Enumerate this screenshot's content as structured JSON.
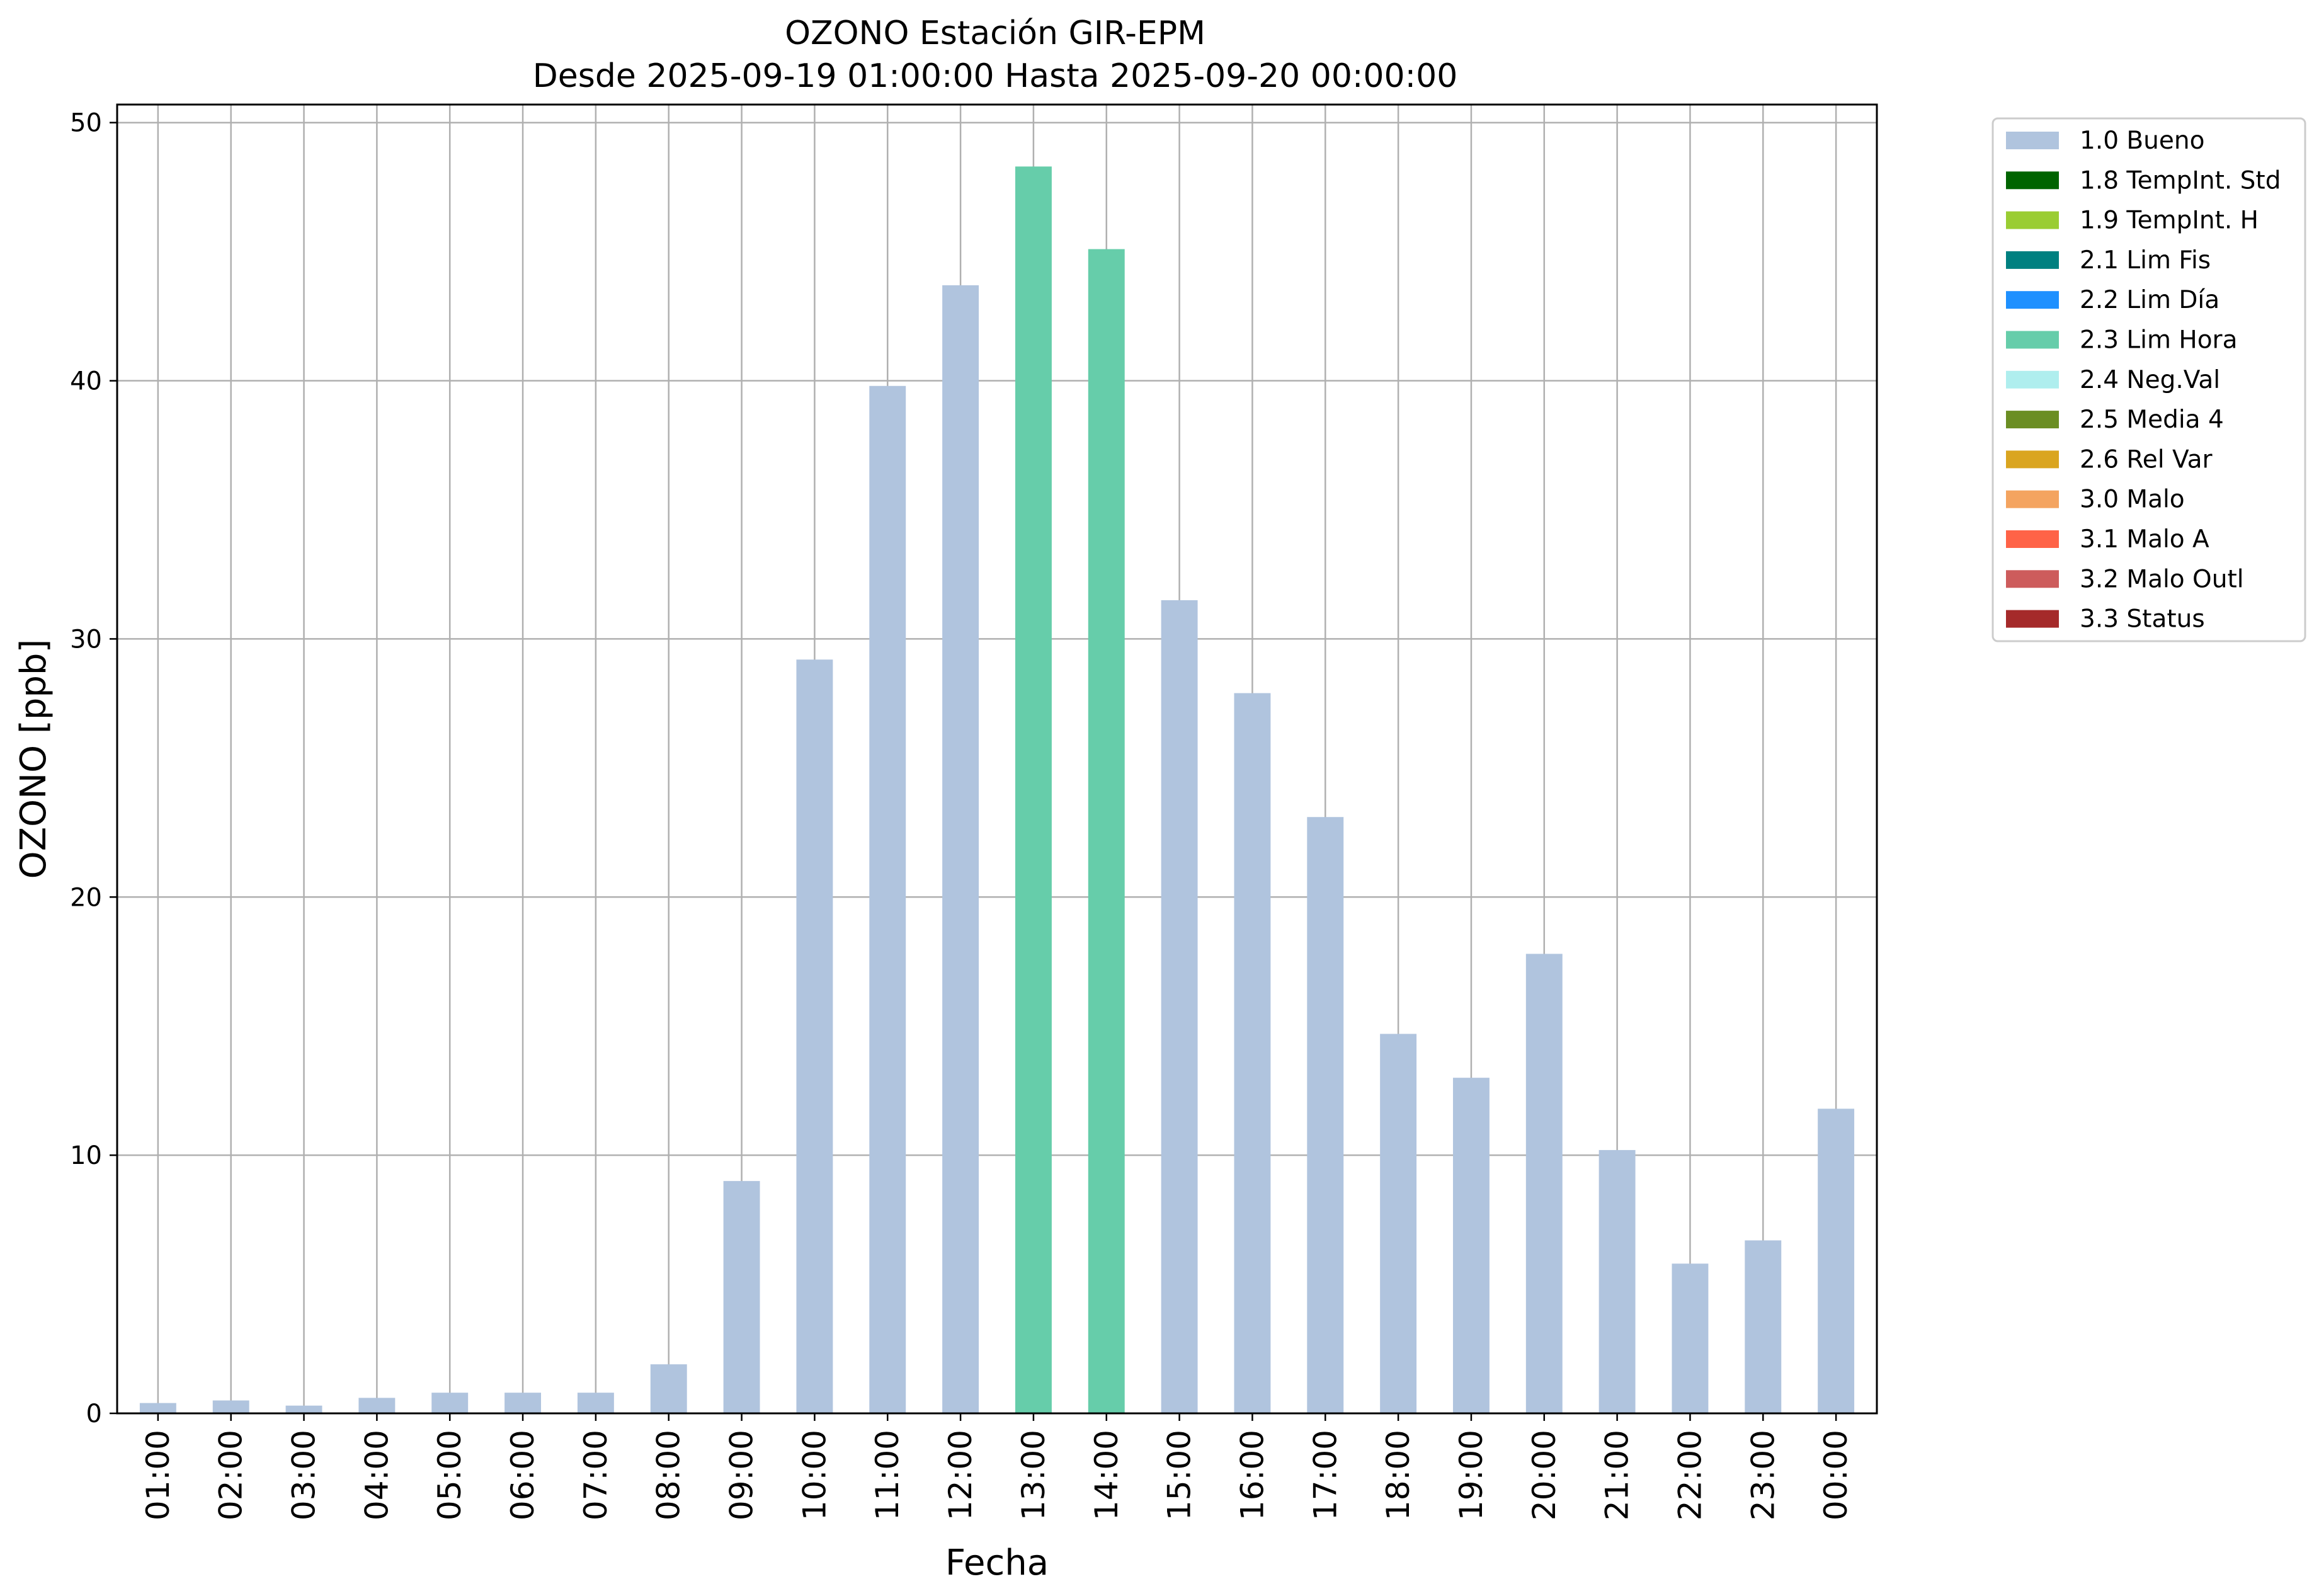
{
  "chart_data": {
    "type": "bar",
    "title": "OZONO Estación GIR-EPM",
    "subtitle": "Desde 2025-09-19 01:00:00 Hasta 2025-09-20 00:00:00",
    "xlabel": "Fecha",
    "ylabel": "OZONO [ppb]",
    "ylim": [
      0,
      50.7
    ],
    "yticks": [
      "0",
      "10",
      "20",
      "30",
      "40",
      "50"
    ],
    "grid": true,
    "legend_position": "outside-top-right",
    "categories": [
      "01:00",
      "02:00",
      "03:00",
      "04:00",
      "05:00",
      "06:00",
      "07:00",
      "08:00",
      "09:00",
      "10:00",
      "11:00",
      "12:00",
      "13:00",
      "14:00",
      "15:00",
      "16:00",
      "17:00",
      "18:00",
      "19:00",
      "20:00",
      "21:00",
      "22:00",
      "23:00",
      "00:00"
    ],
    "values": [
      0.4,
      0.5,
      0.3,
      0.6,
      0.8,
      0.8,
      0.8,
      1.9,
      9.0,
      29.2,
      39.8,
      43.7,
      48.3,
      45.1,
      31.5,
      27.9,
      23.1,
      14.7,
      13.0,
      17.8,
      10.2,
      5.8,
      6.7,
      11.8
    ],
    "flags": [
      "1.0 Bueno",
      "1.0 Bueno",
      "1.0 Bueno",
      "1.0 Bueno",
      "1.0 Bueno",
      "1.0 Bueno",
      "1.0 Bueno",
      "1.0 Bueno",
      "1.0 Bueno",
      "1.0 Bueno",
      "1.0 Bueno",
      "1.0 Bueno",
      "2.3 Lim Hora",
      "2.3 Lim Hora",
      "1.0 Bueno",
      "1.0 Bueno",
      "1.0 Bueno",
      "1.0 Bueno",
      "1.0 Bueno",
      "1.0 Bueno",
      "1.0 Bueno",
      "1.0 Bueno",
      "1.0 Bueno",
      "1.0 Bueno"
    ],
    "legend": [
      {
        "label": "1.0 Bueno",
        "color": "#b0c4de"
      },
      {
        "label": "1.8 TempInt. Std",
        "color": "#006400"
      },
      {
        "label": "1.9 TempInt. H",
        "color": "#9acd32"
      },
      {
        "label": "2.1 Lim Fis",
        "color": "#008080"
      },
      {
        "label": "2.2 Lim Día",
        "color": "#1e90ff"
      },
      {
        "label": "2.3 Lim Hora",
        "color": "#66cdaa"
      },
      {
        "label": "2.4 Neg.Val",
        "color": "#afeeee"
      },
      {
        "label": "2.5 Media 4",
        "color": "#6b8e23"
      },
      {
        "label": "2.6 Rel Var",
        "color": "#daa520"
      },
      {
        "label": "3.0 Malo",
        "color": "#f4a460"
      },
      {
        "label": "3.1 Malo A",
        "color": "#ff6347"
      },
      {
        "label": "3.2 Malo Outl",
        "color": "#cd5c5c"
      },
      {
        "label": "3.3 Status",
        "color": "#a52a2a"
      }
    ]
  }
}
